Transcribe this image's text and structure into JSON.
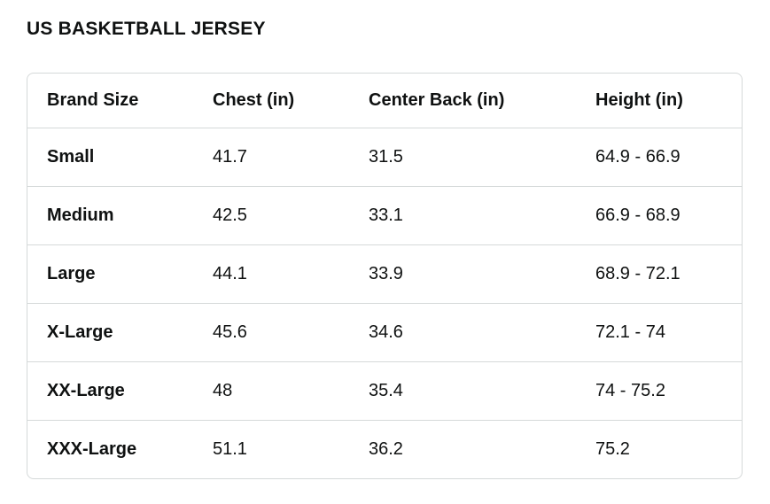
{
  "page": {
    "title": "US BASKETBALL JERSEY"
  },
  "size_chart": {
    "columns": [
      "Brand Size",
      "Chest (in)",
      "Center Back (in)",
      "Height (in)"
    ],
    "rows": [
      {
        "brand_size": "Small",
        "chest": "41.7",
        "center_back": "31.5",
        "height": "64.9 - 66.9"
      },
      {
        "brand_size": "Medium",
        "chest": "42.5",
        "center_back": "33.1",
        "height": "66.9 - 68.9"
      },
      {
        "brand_size": "Large",
        "chest": "44.1",
        "center_back": "33.9",
        "height": "68.9 - 72.1"
      },
      {
        "brand_size": "X-Large",
        "chest": "45.6",
        "center_back": "34.6",
        "height": "72.1 - 74"
      },
      {
        "brand_size": "XX-Large",
        "chest": "48",
        "center_back": "35.4",
        "height": "74 - 75.2"
      },
      {
        "brand_size": "XXX-Large",
        "chest": "51.1",
        "center_back": "36.2",
        "height": "75.2"
      }
    ],
    "colors": {
      "text": "#0F1111",
      "border": "#D5D9D9",
      "background": "#FFFFFF"
    }
  }
}
